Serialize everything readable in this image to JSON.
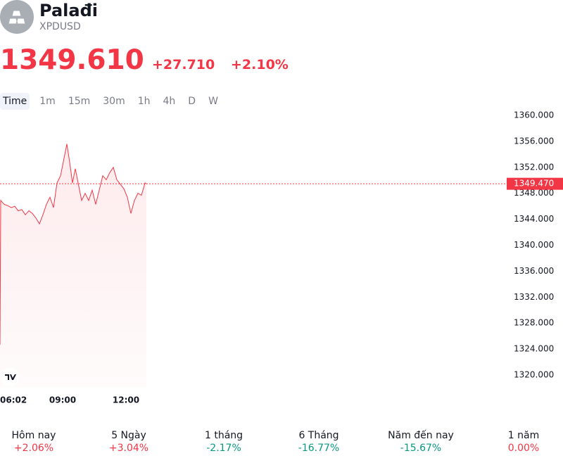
{
  "header": {
    "title": "Palađi",
    "symbol": "XPDUSD",
    "price": "1349.610",
    "change": "+27.710",
    "change_percent": "+2.10%"
  },
  "tabs": [
    "Time",
    "1m",
    "15m",
    "30m",
    "1h",
    "4h",
    "D",
    "W"
  ],
  "chart_data": {
    "type": "line",
    "x": [
      "06:02",
      "06:04",
      "06:14",
      "06:24",
      "06:34",
      "06:44",
      "06:54",
      "07:04",
      "07:14",
      "07:24",
      "07:34",
      "07:44",
      "07:54",
      "08:04",
      "08:14",
      "08:24",
      "08:34",
      "08:44",
      "08:54",
      "09:04",
      "09:12",
      "09:20",
      "09:28",
      "09:36",
      "09:44",
      "09:54",
      "10:04",
      "10:14",
      "10:24",
      "10:34",
      "10:44",
      "10:54",
      "11:04",
      "11:14",
      "11:24",
      "11:34",
      "11:44",
      "11:54",
      "12:04",
      "12:14",
      "12:24",
      "12:34",
      "12:44",
      "12:54",
      "12:58"
    ],
    "series": [
      {
        "color": "#f23645",
        "values": [
          1324.7,
          1346.9,
          1346.3,
          1346.1,
          1345.8,
          1346,
          1345.3,
          1345.5,
          1344.7,
          1345.3,
          1344.9,
          1344.2,
          1343.3,
          1344.7,
          1346.3,
          1347.4,
          1345.8,
          1349.6,
          1350.7,
          1353.4,
          1355.6,
          1352.8,
          1349.6,
          1351.8,
          1349.6,
          1346.9,
          1348,
          1346.9,
          1348.5,
          1346.3,
          1348.5,
          1350.7,
          1350.1,
          1351.2,
          1352,
          1350.1,
          1349.4,
          1348.7,
          1347.4,
          1344.9,
          1346.9,
          1348,
          1347.7,
          1349.6,
          1349.47
        ]
      }
    ],
    "xlim": [
      "06:02",
      "05:52"
    ],
    "xticks": [
      "06:02",
      "09:00",
      "12:00"
    ],
    "ylim": [
      1318.16,
      1360.98
    ],
    "yticks": [
      {
        "value": 1320,
        "label": "1320.000"
      },
      {
        "value": 1324,
        "label": "1324.000"
      },
      {
        "value": 1328,
        "label": "1328.000"
      },
      {
        "value": 1332,
        "label": "1332.000"
      },
      {
        "value": 1336,
        "label": "1336.000"
      },
      {
        "value": 1340,
        "label": "1340.000"
      },
      {
        "value": 1344,
        "label": "1344.000"
      },
      {
        "value": 1348,
        "label": "1348.000"
      },
      {
        "value": 1352,
        "label": "1352.000"
      },
      {
        "value": 1356,
        "label": "1356.000"
      },
      {
        "value": 1360,
        "label": "1360.000"
      }
    ],
    "last_value": {
      "value": 1349.47,
      "label": "1349.470"
    }
  },
  "performance": [
    {
      "label": "Hôm nay",
      "value": "+2.06%",
      "color": "#f23645"
    },
    {
      "label": "5 Ngày",
      "value": "+3.04%",
      "color": "#f23645"
    },
    {
      "label": "1 tháng",
      "value": "-2.17%",
      "color": "#089981"
    },
    {
      "label": "6 Tháng",
      "value": "-16.77%",
      "color": "#089981"
    },
    {
      "label": "Năm đến nay",
      "value": "-15.67%",
      "color": "#089981"
    },
    {
      "label": "1 năm",
      "value": "0.00%",
      "color": "#f23645"
    }
  ]
}
